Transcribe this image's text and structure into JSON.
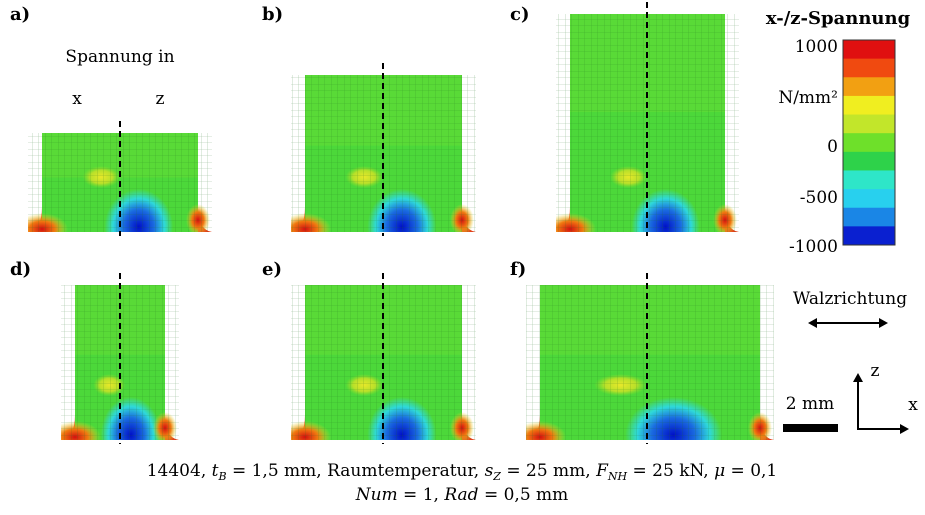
{
  "panels": [
    {
      "label": "a)"
    },
    {
      "label": "b)"
    },
    {
      "label": "c)"
    },
    {
      "label": "d)"
    },
    {
      "label": "e)"
    },
    {
      "label": "f)"
    }
  ],
  "annotation": {
    "title": "Spannung in",
    "left": "x",
    "right": "z"
  },
  "colorbar": {
    "title": "x-/z-Spannung",
    "unit": "N/mm²",
    "ticks": [
      "1000",
      "0",
      "-500",
      "-1000"
    ]
  },
  "direction": "Walzrichtung",
  "axes": {
    "z": "z",
    "x": "x"
  },
  "scale": "2 mm",
  "caption": {
    "line1": [
      "14404, ",
      "t",
      "B",
      " = 1,5 mm, Raumtemperatur, ",
      "s",
      "Z",
      " = 25 mm, ",
      "F",
      "NH",
      " = 25 kN, ",
      "μ",
      " = 0,1"
    ],
    "line2": [
      "Num",
      " = 1, ",
      "Rad",
      " = 0,5 mm"
    ]
  }
}
